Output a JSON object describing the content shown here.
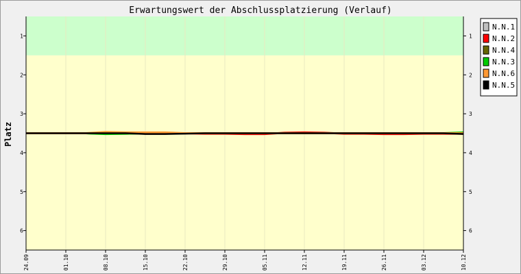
{
  "chart_data": {
    "type": "line",
    "title": "Erwartungswert der Abschlussplatzierung (Verlauf)",
    "xlabel": "",
    "ylabel": "Platz",
    "x_tick_labels": [
      "24.09",
      "01.10",
      "08.10",
      "15.10",
      "22.10",
      "29.10",
      "05.11",
      "12.11",
      "19.11",
      "26.11",
      "03.12",
      "10.12"
    ],
    "y_ticks": [
      1,
      2,
      3,
      4,
      5,
      6
    ],
    "ylim": [
      0.5,
      6.5
    ],
    "y_inverted": true,
    "bands": [
      {
        "from": 0.5,
        "to": 1.5,
        "color": "#ccffcc"
      },
      {
        "from": 1.5,
        "to": 6.5,
        "color": "#ffffcc"
      }
    ],
    "legend_position": "right",
    "x": [
      0,
      0.5,
      1,
      1.5,
      2,
      2.5,
      3,
      3.5,
      4,
      4.5,
      5,
      5.5,
      6,
      6.5,
      7,
      7.5,
      8,
      8.5,
      9,
      9.5,
      10,
      10.5,
      11
    ],
    "series": [
      {
        "name": "N.N.1",
        "color": "#c0c0c0",
        "values": [
          3.5,
          3.5,
          3.5,
          3.5,
          3.5,
          3.5,
          3.5,
          3.5,
          3.5,
          3.5,
          3.5,
          3.5,
          3.5,
          3.5,
          3.5,
          3.5,
          3.5,
          3.5,
          3.5,
          3.5,
          3.5,
          3.5,
          3.5
        ]
      },
      {
        "name": "N.N.2",
        "color": "#ff0000",
        "values": [
          3.5,
          3.5,
          3.5,
          3.5,
          3.5,
          3.49,
          3.51,
          3.51,
          3.5,
          3.51,
          3.51,
          3.52,
          3.52,
          3.49,
          3.48,
          3.49,
          3.51,
          3.51,
          3.52,
          3.52,
          3.51,
          3.51,
          3.51
        ]
      },
      {
        "name": "N.N.4",
        "color": "#666600",
        "values": [
          3.5,
          3.5,
          3.5,
          3.5,
          3.51,
          3.51,
          3.5,
          3.5,
          3.5,
          3.5,
          3.5,
          3.5,
          3.5,
          3.5,
          3.5,
          3.5,
          3.5,
          3.5,
          3.5,
          3.5,
          3.5,
          3.5,
          3.5
        ]
      },
      {
        "name": "N.N.3",
        "color": "#00cc00",
        "values": [
          3.5,
          3.5,
          3.5,
          3.5,
          3.52,
          3.51,
          3.5,
          3.5,
          3.5,
          3.5,
          3.5,
          3.5,
          3.5,
          3.5,
          3.5,
          3.5,
          3.5,
          3.5,
          3.5,
          3.5,
          3.5,
          3.5,
          3.48
        ]
      },
      {
        "name": "N.N.6",
        "color": "#ff9933",
        "values": [
          3.5,
          3.5,
          3.5,
          3.5,
          3.47,
          3.48,
          3.48,
          3.48,
          3.5,
          3.5,
          3.5,
          3.5,
          3.5,
          3.5,
          3.5,
          3.5,
          3.5,
          3.5,
          3.5,
          3.5,
          3.5,
          3.5,
          3.5
        ]
      },
      {
        "name": "N.N.5",
        "color": "#000000",
        "values": [
          3.5,
          3.5,
          3.5,
          3.5,
          3.5,
          3.5,
          3.52,
          3.52,
          3.51,
          3.5,
          3.5,
          3.5,
          3.5,
          3.5,
          3.5,
          3.5,
          3.5,
          3.5,
          3.5,
          3.5,
          3.5,
          3.5,
          3.52
        ]
      }
    ]
  }
}
